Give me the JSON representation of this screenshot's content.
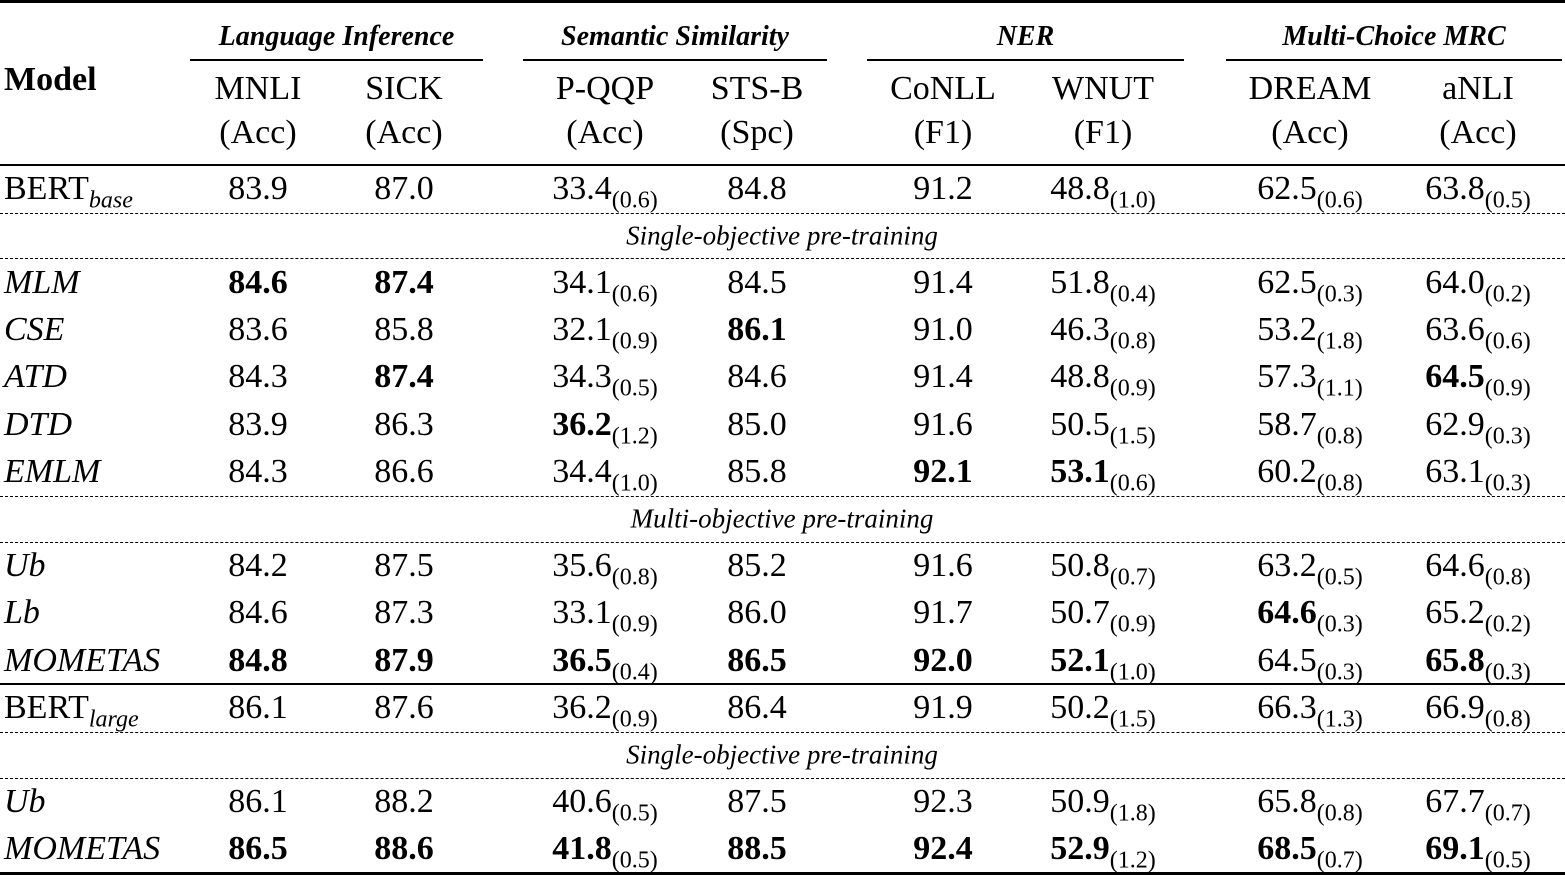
{
  "table": {
    "header": {
      "model": "Model",
      "groups": [
        {
          "title": "Language Inference",
          "columns": [
            {
              "name": "MNLI",
              "metric": "(Acc)"
            },
            {
              "name": "SICK",
              "metric": "(Acc)"
            }
          ]
        },
        {
          "title": "Semantic Similarity",
          "columns": [
            {
              "name": "P-QQP",
              "metric": "(Acc)"
            },
            {
              "name": "STS-B",
              "metric": "(Spc)"
            }
          ]
        },
        {
          "title": "NER",
          "columns": [
            {
              "name": "CoNLL",
              "metric": "(F1)"
            },
            {
              "name": "WNUT",
              "metric": "(F1)"
            }
          ]
        },
        {
          "title": "Multi-Choice MRC",
          "columns": [
            {
              "name": "DREAM",
              "metric": "(Acc)"
            },
            {
              "name": "aNLI",
              "metric": "(Acc)"
            }
          ]
        }
      ]
    },
    "rows": [
      {
        "model": "BERT",
        "model_sub": "base",
        "cells": [
          {
            "v": "83.9"
          },
          {
            "v": "87.0"
          },
          {
            "v": "33.4",
            "std": "(0.6)"
          },
          {
            "v": "84.8"
          },
          {
            "v": "91.2"
          },
          {
            "v": "48.8",
            "std": "(1.0)"
          },
          {
            "v": "62.5",
            "std": "(0.6)"
          },
          {
            "v": "63.8",
            "std": "(0.5)"
          }
        ]
      },
      {
        "section": "Single-objective pre-training"
      },
      {
        "model": "MLM",
        "italic": true,
        "cells": [
          {
            "v": "84.6",
            "bold": true
          },
          {
            "v": "87.4",
            "bold": true
          },
          {
            "v": "34.1",
            "std": "(0.6)"
          },
          {
            "v": "84.5"
          },
          {
            "v": "91.4"
          },
          {
            "v": "51.8",
            "std": "(0.4)"
          },
          {
            "v": "62.5",
            "std": "(0.3)"
          },
          {
            "v": "64.0",
            "std": "(0.2)"
          }
        ]
      },
      {
        "model": "CSE",
        "italic": true,
        "cells": [
          {
            "v": "83.6"
          },
          {
            "v": "85.8"
          },
          {
            "v": "32.1",
            "std": "(0.9)"
          },
          {
            "v": "86.1",
            "bold": true
          },
          {
            "v": "91.0"
          },
          {
            "v": "46.3",
            "std": "(0.8)"
          },
          {
            "v": "53.2",
            "std": "(1.8)"
          },
          {
            "v": "63.6",
            "std": "(0.6)"
          }
        ]
      },
      {
        "model": "ATD",
        "italic": true,
        "cells": [
          {
            "v": "84.3"
          },
          {
            "v": "87.4",
            "bold": true
          },
          {
            "v": "34.3",
            "std": "(0.5)"
          },
          {
            "v": "84.6"
          },
          {
            "v": "91.4"
          },
          {
            "v": "48.8",
            "std": "(0.9)"
          },
          {
            "v": "57.3",
            "std": "(1.1)"
          },
          {
            "v": "64.5",
            "std": "(0.9)",
            "bold": true
          }
        ]
      },
      {
        "model": "DTD",
        "italic": true,
        "cells": [
          {
            "v": "83.9"
          },
          {
            "v": "86.3"
          },
          {
            "v": "36.2",
            "std": "(1.2)",
            "bold": true
          },
          {
            "v": "85.0"
          },
          {
            "v": "91.6"
          },
          {
            "v": "50.5",
            "std": "(1.5)"
          },
          {
            "v": "58.7",
            "std": "(0.8)"
          },
          {
            "v": "62.9",
            "std": "(0.3)"
          }
        ]
      },
      {
        "model": "EMLM",
        "italic": true,
        "cells": [
          {
            "v": "84.3"
          },
          {
            "v": "86.6"
          },
          {
            "v": "34.4",
            "std": "(1.0)"
          },
          {
            "v": "85.8"
          },
          {
            "v": "92.1",
            "bold": true
          },
          {
            "v": "53.1",
            "std": "(0.6)",
            "bold": true
          },
          {
            "v": "60.2",
            "std": "(0.8)"
          },
          {
            "v": "63.1",
            "std": "(0.3)"
          }
        ]
      },
      {
        "section": "Multi-objective pre-training"
      },
      {
        "model": "Ub",
        "italic": true,
        "cells": [
          {
            "v": "84.2"
          },
          {
            "v": "87.5"
          },
          {
            "v": "35.6",
            "std": "(0.8)"
          },
          {
            "v": "85.2"
          },
          {
            "v": "91.6"
          },
          {
            "v": "50.8",
            "std": "(0.7)"
          },
          {
            "v": "63.2",
            "std": "(0.5)"
          },
          {
            "v": "64.6",
            "std": "(0.8)"
          }
        ]
      },
      {
        "model": "Lb",
        "italic": true,
        "cells": [
          {
            "v": "84.6"
          },
          {
            "v": "87.3"
          },
          {
            "v": "33.1",
            "std": "(0.9)"
          },
          {
            "v": "86.0"
          },
          {
            "v": "91.7"
          },
          {
            "v": "50.7",
            "std": "(0.9)"
          },
          {
            "v": "64.6",
            "std": "(0.3)",
            "bold": true
          },
          {
            "v": "65.2",
            "std": "(0.2)"
          }
        ]
      },
      {
        "model": "MOMETAS",
        "italic": true,
        "cells": [
          {
            "v": "84.8",
            "bold": true
          },
          {
            "v": "87.9",
            "bold": true
          },
          {
            "v": "36.5",
            "std": "(0.4)",
            "bold": true
          },
          {
            "v": "86.5",
            "bold": true
          },
          {
            "v": "92.0",
            "bold": true
          },
          {
            "v": "52.1",
            "std": "(1.0)",
            "bold": true
          },
          {
            "v": "64.5",
            "std": "(0.3)"
          },
          {
            "v": "65.8",
            "std": "(0.3)",
            "bold": true
          }
        ]
      },
      {
        "model": "BERT",
        "model_sub": "large",
        "cells": [
          {
            "v": "86.1"
          },
          {
            "v": "87.6"
          },
          {
            "v": "36.2",
            "std": "(0.9)"
          },
          {
            "v": "86.4"
          },
          {
            "v": "91.9"
          },
          {
            "v": "50.2",
            "std": "(1.5)"
          },
          {
            "v": "66.3",
            "std": "(1.3)"
          },
          {
            "v": "66.9",
            "std": "(0.8)"
          }
        ]
      },
      {
        "section": "Single-objective pre-training"
      },
      {
        "model": "Ub",
        "italic": true,
        "cells": [
          {
            "v": "86.1"
          },
          {
            "v": "88.2"
          },
          {
            "v": "40.6",
            "std": "(0.5)"
          },
          {
            "v": "87.5"
          },
          {
            "v": "92.3"
          },
          {
            "v": "50.9",
            "std": "(1.8)"
          },
          {
            "v": "65.8",
            "std": "(0.8)"
          },
          {
            "v": "67.7",
            "std": "(0.7)"
          }
        ]
      },
      {
        "model": "MOMETAS",
        "italic": true,
        "cells": [
          {
            "v": "86.5",
            "bold": true
          },
          {
            "v": "88.6",
            "bold": true
          },
          {
            "v": "41.8",
            "std": "(0.5)",
            "bold": true
          },
          {
            "v": "88.5",
            "bold": true
          },
          {
            "v": "92.4",
            "bold": true
          },
          {
            "v": "52.9",
            "std": "(1.2)",
            "bold": true
          },
          {
            "v": "68.5",
            "std": "(0.7)",
            "bold": true
          },
          {
            "v": "69.1",
            "std": "(0.5)",
            "bold": true
          }
        ]
      }
    ]
  }
}
